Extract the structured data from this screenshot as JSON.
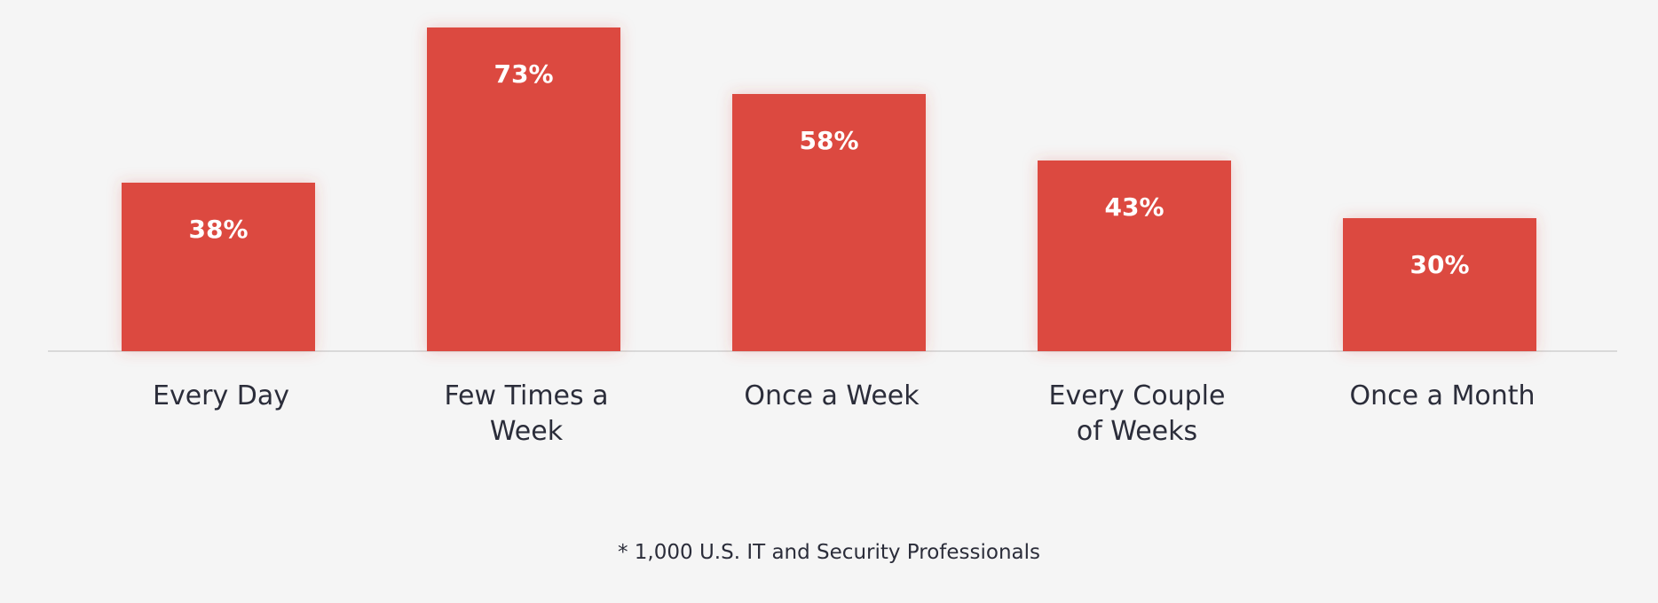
{
  "chart_data": {
    "type": "bar",
    "categories": [
      "Every Day",
      "Few Times a Week",
      "Once a Week",
      "Every Couple of Weeks",
      "Once a Month"
    ],
    "category_label_lines": [
      [
        "Every Day"
      ],
      [
        "Few Times a",
        "Week"
      ],
      [
        "Once a Week"
      ],
      [
        "Every Couple",
        "of Weeks"
      ],
      [
        "Once a Month"
      ]
    ],
    "values": [
      38,
      73,
      58,
      43,
      30
    ],
    "value_labels": [
      "38%",
      "73%",
      "58%",
      "43%",
      "30%"
    ],
    "unit": "%",
    "ylim": [
      0,
      100
    ],
    "grid": false,
    "bar_color": "#dc4a3f"
  },
  "footnote": "* 1,000 U.S. IT and Security Professionals"
}
